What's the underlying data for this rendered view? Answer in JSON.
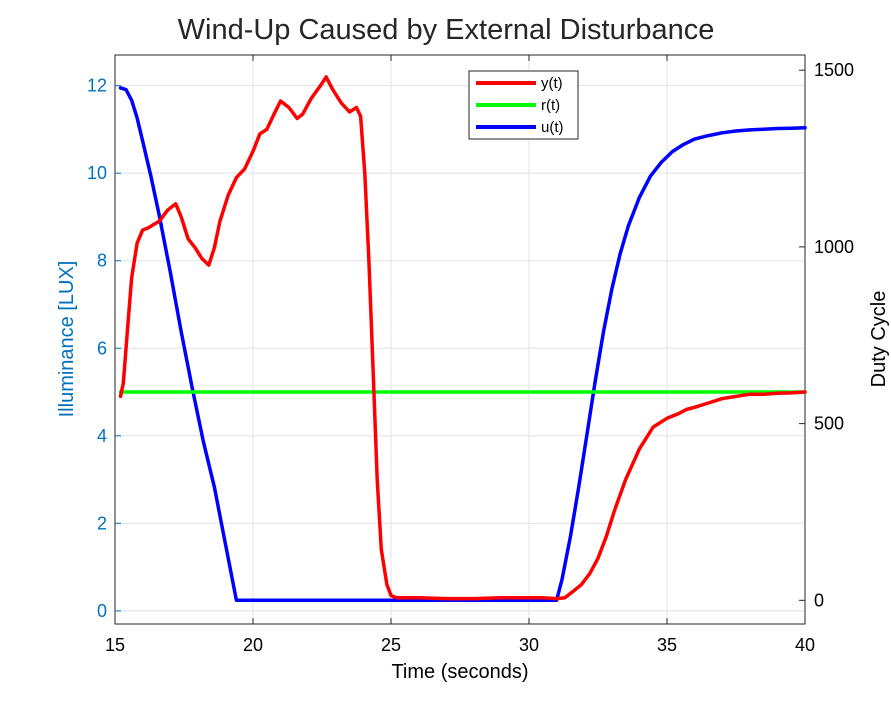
{
  "chart_data": {
    "type": "line",
    "title": "Wind-Up Caused by External Disturbance",
    "xlabel": "Time (seconds)",
    "ylabel_left": "Illuminance [LUX]",
    "ylabel_right": "Duty Cycle",
    "xlim": [
      15,
      40
    ],
    "ylim_left": [
      -0.3,
      12.7
    ],
    "ylim_right": [
      -67,
      1543
    ],
    "x_ticks": [
      "15",
      "20",
      "25",
      "30",
      "35",
      "40"
    ],
    "y_ticks_left": [
      "0",
      "2",
      "4",
      "6",
      "8",
      "10",
      "12"
    ],
    "y_ticks_right": [
      "0",
      "500",
      "1000",
      "1500"
    ],
    "grid": true,
    "legend_position": "top-center",
    "colors": {
      "left_axis": "#0072bd",
      "y": "#ff0000",
      "r": "#00ff00",
      "u": "#0000ff"
    },
    "series": [
      {
        "name": "y(t)",
        "axis": "left",
        "color": "#ff0000",
        "x": [
          15.2,
          15.3,
          15.45,
          15.6,
          15.8,
          16.0,
          16.2,
          16.6,
          16.9,
          17.2,
          17.4,
          17.65,
          17.9,
          18.15,
          18.4,
          18.6,
          18.8,
          19.1,
          19.4,
          19.7,
          20.0,
          20.25,
          20.5,
          20.8,
          21.0,
          21.3,
          21.6,
          21.8,
          22.1,
          22.5,
          22.65,
          22.9,
          23.2,
          23.5,
          23.75,
          23.9,
          24.05,
          24.2,
          24.35,
          24.5,
          24.65,
          24.85,
          25.0,
          25.2,
          25.5,
          26.0,
          27.0,
          28.0,
          29.0,
          30.0,
          30.5,
          31.0,
          31.3,
          31.6,
          31.9,
          32.2,
          32.5,
          32.8,
          33.1,
          33.5,
          34.0,
          34.5,
          35.0,
          35.4,
          35.7,
          36.0,
          36.5,
          37.0,
          37.5,
          38.0,
          38.5,
          39.0,
          39.5,
          40.0
        ],
        "values": [
          4.9,
          5.2,
          6.4,
          7.6,
          8.4,
          8.7,
          8.75,
          8.9,
          9.15,
          9.3,
          9.0,
          8.5,
          8.3,
          8.05,
          7.9,
          8.3,
          8.9,
          9.5,
          9.9,
          10.1,
          10.5,
          10.9,
          11.0,
          11.4,
          11.65,
          11.5,
          11.25,
          11.35,
          11.7,
          12.05,
          12.2,
          11.9,
          11.6,
          11.4,
          11.5,
          11.3,
          10.0,
          8.0,
          5.5,
          3.0,
          1.4,
          0.6,
          0.35,
          0.3,
          0.3,
          0.3,
          0.28,
          0.28,
          0.3,
          0.3,
          0.3,
          0.28,
          0.3,
          0.45,
          0.6,
          0.85,
          1.2,
          1.7,
          2.3,
          3.0,
          3.7,
          4.2,
          4.4,
          4.5,
          4.6,
          4.65,
          4.75,
          4.85,
          4.9,
          4.95,
          4.95,
          4.97,
          4.98,
          5.0
        ]
      },
      {
        "name": "r(t)",
        "axis": "left",
        "color": "#00ff00",
        "x": [
          15.2,
          40.0
        ],
        "values": [
          5.0,
          5.0
        ]
      },
      {
        "name": "u(t)",
        "axis": "right",
        "color": "#0000ff",
        "x": [
          15.2,
          15.4,
          15.6,
          15.8,
          16.0,
          16.3,
          16.6,
          17.0,
          17.4,
          17.8,
          18.2,
          18.6,
          19.0,
          19.2,
          19.4,
          20.0,
          25.0,
          28.0,
          31.0,
          31.2,
          31.5,
          31.8,
          32.1,
          32.4,
          32.7,
          33.0,
          33.3,
          33.6,
          34.0,
          34.4,
          34.8,
          35.2,
          35.6,
          36.0,
          36.5,
          37.0,
          37.5,
          38.0,
          38.5,
          39.0,
          39.5,
          40.0
        ],
        "values": [
          1450,
          1445,
          1415,
          1365,
          1300,
          1200,
          1090,
          930,
          760,
          600,
          450,
          320,
          160,
          80,
          0,
          0,
          0,
          0,
          0,
          60,
          180,
          320,
          470,
          620,
          760,
          880,
          980,
          1060,
          1140,
          1200,
          1240,
          1270,
          1290,
          1305,
          1315,
          1323,
          1328,
          1331,
          1333,
          1335,
          1336,
          1337
        ]
      }
    ]
  }
}
